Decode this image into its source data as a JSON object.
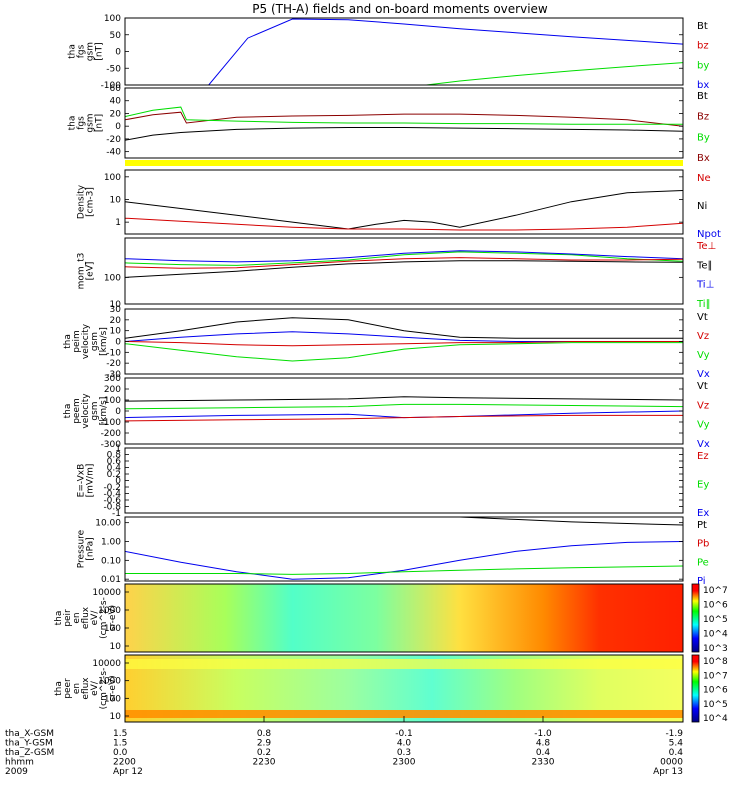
{
  "title": "P5 (TH-A) fields and on-board moments overview",
  "colors": {
    "black": "#000000",
    "red": "#d40000",
    "green": "#00dd00",
    "blue": "#0000ee",
    "yellow": "#ffff00",
    "darkred": "#8b0000"
  },
  "chart_data": [
    {
      "type": "line",
      "ylabel": [
        "tha",
        "fgs",
        "gsm",
        "[nT]"
      ],
      "ylim": [
        -100,
        100
      ],
      "ticks": [
        100,
        50,
        0,
        -50,
        -100
      ],
      "legend": [
        {
          "label": "Bt",
          "color": "black"
        },
        {
          "label": "bz",
          "color": "red"
        },
        {
          "label": "by",
          "color": "green"
        },
        {
          "label": "bx",
          "color": "blue"
        }
      ],
      "series": [
        {
          "name": "bx",
          "color": "blue",
          "x": [
            0.15,
            0.22,
            0.3,
            0.4,
            0.5,
            0.6,
            0.7,
            0.8,
            0.9,
            1.0
          ],
          "y": [
            -100,
            40,
            97,
            95,
            82,
            68,
            56,
            44,
            33,
            22
          ]
        },
        {
          "name": "by",
          "color": "green",
          "x": [
            0.54,
            0.6,
            0.7,
            0.8,
            0.9,
            1.0
          ],
          "y": [
            -100,
            -88,
            -72,
            -58,
            -45,
            -33
          ]
        }
      ]
    },
    {
      "type": "line",
      "ylabel": [
        "tha",
        "fgs",
        "gsm",
        "[nT]"
      ],
      "ylim": [
        -50,
        60
      ],
      "ticks": [
        60,
        40,
        20,
        0,
        -20,
        -40
      ],
      "legend": [
        {
          "label": "Bt",
          "color": "black"
        },
        {
          "label": "Bz",
          "color": "darkred"
        },
        {
          "label": "By",
          "color": "green"
        },
        {
          "label": "Bx",
          "color": "darkred"
        }
      ],
      "series": [
        {
          "name": "Bz",
          "color": "darkred",
          "x": [
            0,
            0.05,
            0.1,
            0.11,
            0.2,
            0.3,
            0.4,
            0.5,
            0.6,
            0.7,
            0.8,
            0.9,
            1.0
          ],
          "y": [
            10,
            18,
            22,
            5,
            14,
            16,
            17,
            19,
            19,
            17,
            14,
            10,
            0
          ]
        },
        {
          "name": "By",
          "color": "green",
          "x": [
            0,
            0.05,
            0.1,
            0.11,
            0.2,
            0.3,
            0.4,
            0.5,
            0.6,
            0.7,
            0.8,
            0.9,
            1.0
          ],
          "y": [
            15,
            25,
            30,
            10,
            8,
            6,
            5,
            5,
            4,
            4,
            3,
            3,
            3
          ]
        },
        {
          "name": "Bt",
          "color": "black",
          "x": [
            0,
            0.05,
            0.1,
            0.2,
            0.3,
            0.4,
            0.5,
            0.6,
            0.7,
            0.8,
            0.9,
            1.0
          ],
          "y": [
            -22,
            -14,
            -10,
            -5,
            -3,
            -2,
            -2,
            -3,
            -4,
            -5,
            -6,
            -8
          ]
        }
      ]
    },
    {
      "type": "line",
      "ylabel": [
        "Density",
        "[cm-3]"
      ],
      "ylog": true,
      "ylim": [
        0.3,
        200
      ],
      "ticks": [
        100,
        10,
        1
      ],
      "legend": [
        {
          "label": "Ne",
          "color": "red"
        },
        {
          "label": "Ni",
          "color": "black"
        },
        {
          "label": "Npot",
          "color": "blue"
        }
      ],
      "series": [
        {
          "name": "Ni",
          "color": "black",
          "x": [
            0,
            0.1,
            0.2,
            0.3,
            0.4,
            0.45,
            0.5,
            0.55,
            0.6,
            0.7,
            0.8,
            0.9,
            1.0
          ],
          "y": [
            8,
            4,
            2,
            1,
            0.5,
            0.8,
            1.2,
            1,
            0.6,
            2,
            8,
            20,
            25
          ]
        },
        {
          "name": "Ne",
          "color": "red",
          "x": [
            0,
            0.1,
            0.2,
            0.3,
            0.4,
            0.5,
            0.6,
            0.7,
            0.8,
            0.9,
            1.0
          ],
          "y": [
            1.5,
            1.1,
            0.8,
            0.6,
            0.5,
            0.5,
            0.45,
            0.45,
            0.5,
            0.6,
            0.9
          ]
        }
      ]
    },
    {
      "type": "line",
      "ylabel": [
        "mom_t3",
        "[eV]"
      ],
      "ylog": true,
      "ylim": [
        10,
        3000
      ],
      "ticks": [
        100,
        10
      ],
      "legend": [
        {
          "label": "Te⊥",
          "color": "red"
        },
        {
          "label": "Te∥",
          "color": "black"
        },
        {
          "label": "Ti⊥",
          "color": "blue"
        },
        {
          "label": "Ti∥",
          "color": "green"
        }
      ],
      "series": [
        {
          "name": "Ti∥",
          "color": "green",
          "x": [
            0,
            0.1,
            0.2,
            0.3,
            0.4,
            0.5,
            0.6,
            0.7,
            0.8,
            0.9,
            1.0
          ],
          "y": [
            350,
            300,
            280,
            350,
            450,
            700,
            900,
            800,
            700,
            500,
            400
          ]
        },
        {
          "name": "Ti⊥",
          "color": "blue",
          "x": [
            0,
            0.1,
            0.2,
            0.3,
            0.4,
            0.5,
            0.6,
            0.7,
            0.8,
            0.9,
            1.0
          ],
          "y": [
            500,
            420,
            380,
            420,
            550,
            800,
            1000,
            900,
            750,
            600,
            500
          ]
        },
        {
          "name": "Te⊥",
          "color": "red",
          "x": [
            0,
            0.1,
            0.2,
            0.3,
            0.4,
            0.5,
            0.6,
            0.7,
            0.8,
            0.9,
            1.0
          ],
          "y": [
            250,
            220,
            230,
            300,
            400,
            500,
            550,
            500,
            450,
            450,
            480
          ]
        },
        {
          "name": "Te∥",
          "color": "black",
          "x": [
            0,
            0.1,
            0.2,
            0.3,
            0.4,
            0.5,
            0.6,
            0.7,
            0.8,
            0.9,
            1.0
          ],
          "y": [
            100,
            130,
            170,
            240,
            320,
            380,
            420,
            420,
            400,
            380,
            370
          ]
        }
      ]
    },
    {
      "type": "line",
      "ylabel": [
        "tha",
        "peim",
        "velocity",
        "gsm",
        "[km/s]"
      ],
      "ylim": [
        -30,
        30
      ],
      "ticks": [
        30,
        20,
        10,
        0,
        -10,
        -20,
        -30
      ],
      "legend": [
        {
          "label": "Vt",
          "color": "black"
        },
        {
          "label": "Vz",
          "color": "red"
        },
        {
          "label": "Vy",
          "color": "green"
        },
        {
          "label": "Vx",
          "color": "blue"
        }
      ],
      "series": [
        {
          "name": "Vt",
          "color": "black",
          "x": [
            0,
            0.1,
            0.2,
            0.3,
            0.4,
            0.5,
            0.6,
            0.7,
            0.8,
            0.9,
            1.0
          ],
          "y": [
            3,
            10,
            18,
            22,
            20,
            10,
            4,
            3,
            3,
            3,
            3
          ]
        },
        {
          "name": "Vx",
          "color": "blue",
          "x": [
            0,
            0.1,
            0.2,
            0.3,
            0.4,
            0.5,
            0.6,
            0.7,
            0.8,
            0.9,
            1.0
          ],
          "y": [
            0,
            4,
            7,
            9,
            7,
            4,
            1,
            0,
            0,
            0,
            0
          ]
        },
        {
          "name": "Vz",
          "color": "red",
          "x": [
            0,
            0.1,
            0.2,
            0.3,
            0.4,
            0.5,
            0.6,
            0.7,
            0.8,
            0.9,
            1.0
          ],
          "y": [
            0,
            -1,
            -3,
            -4,
            -3,
            -2,
            -1,
            -1,
            0,
            0,
            0
          ]
        },
        {
          "name": "Vy",
          "color": "green",
          "x": [
            0,
            0.1,
            0.2,
            0.3,
            0.4,
            0.5,
            0.6,
            0.7,
            0.8,
            0.9,
            1.0
          ],
          "y": [
            -2,
            -8,
            -14,
            -18,
            -15,
            -7,
            -3,
            -2,
            -1,
            -1,
            -1
          ]
        }
      ]
    },
    {
      "type": "line",
      "ylabel": [
        "tha",
        "peem",
        "velocity",
        "gsm",
        "[km/s]"
      ],
      "ylim": [
        -300,
        300
      ],
      "ticks": [
        300,
        200,
        100,
        0,
        -100,
        -200,
        -300
      ],
      "legend": [
        {
          "label": "Vt",
          "color": "black"
        },
        {
          "label": "Vz",
          "color": "red"
        },
        {
          "label": "Vy",
          "color": "green"
        },
        {
          "label": "Vx",
          "color": "blue"
        }
      ],
      "series": [
        {
          "name": "Vt",
          "color": "black",
          "x": [
            0,
            0.2,
            0.4,
            0.5,
            0.6,
            0.8,
            1.0
          ],
          "y": [
            90,
            100,
            110,
            130,
            120,
            110,
            100
          ]
        },
        {
          "name": "Vy",
          "color": "green",
          "x": [
            0,
            0.2,
            0.4,
            0.5,
            0.6,
            0.8,
            1.0
          ],
          "y": [
            20,
            30,
            40,
            60,
            60,
            50,
            40
          ]
        },
        {
          "name": "Vx",
          "color": "blue",
          "x": [
            0,
            0.2,
            0.4,
            0.5,
            0.6,
            0.8,
            1.0
          ],
          "y": [
            -60,
            -40,
            -30,
            -60,
            -50,
            -20,
            0
          ]
        },
        {
          "name": "Vz",
          "color": "red",
          "x": [
            0,
            0.2,
            0.4,
            0.5,
            0.6,
            0.8,
            1.0
          ],
          "y": [
            -90,
            -80,
            -70,
            -60,
            -50,
            -40,
            -40
          ]
        }
      ]
    },
    {
      "type": "line",
      "ylabel": [
        "E=-VxB",
        "[mV/m]"
      ],
      "ylim": [
        -1,
        1
      ],
      "ticks": [
        1.0,
        0.8,
        0.6,
        0.4,
        0.2,
        0.0,
        -0.2,
        -0.4,
        -0.6,
        -0.8,
        -1.0
      ],
      "legend": [
        {
          "label": "Ez",
          "color": "red"
        },
        {
          "label": "Ey",
          "color": "green"
        },
        {
          "label": "Ex",
          "color": "blue"
        }
      ],
      "series": []
    },
    {
      "type": "line",
      "ylabel": [
        "Pressure",
        "[nPa]"
      ],
      "ylog": true,
      "ylim": [
        0.008,
        20
      ],
      "ticks": [
        "10.00",
        "1.00",
        "0.10",
        "0.01"
      ],
      "tickvals": [
        10,
        1,
        0.1,
        0.01
      ],
      "legend": [
        {
          "label": "Pt",
          "color": "black"
        },
        {
          "label": "Pb",
          "color": "red"
        },
        {
          "label": "Pe",
          "color": "green"
        },
        {
          "label": "Pi",
          "color": "blue"
        }
      ],
      "series": [
        {
          "name": "Pt",
          "color": "black",
          "x": [
            0.6,
            0.7,
            0.8,
            0.9,
            1.0
          ],
          "y": [
            20,
            15,
            11,
            9,
            7.5
          ]
        },
        {
          "name": "Pi",
          "color": "blue",
          "x": [
            0,
            0.1,
            0.2,
            0.3,
            0.4,
            0.5,
            0.6,
            0.7,
            0.8,
            0.9,
            1.0
          ],
          "y": [
            0.3,
            0.08,
            0.025,
            0.01,
            0.012,
            0.03,
            0.1,
            0.3,
            0.6,
            0.9,
            1.0
          ]
        },
        {
          "name": "Pe",
          "color": "green",
          "x": [
            0,
            0.1,
            0.2,
            0.3,
            0.4,
            0.5,
            0.6,
            0.7,
            0.8,
            0.9,
            1.0
          ],
          "y": [
            0.02,
            0.02,
            0.02,
            0.018,
            0.02,
            0.025,
            0.03,
            0.035,
            0.04,
            0.045,
            0.05
          ]
        }
      ]
    },
    {
      "type": "heatmap",
      "ylabel": [
        "tha",
        "peir",
        "en",
        "eflux",
        "eV/",
        "(cm^2-s-",
        "sr-eV)"
      ],
      "yticks": [
        "10000",
        "1000",
        "100",
        "10"
      ],
      "colorbar": [
        "10^7",
        "10^6",
        "10^5",
        "10^4",
        "10^3"
      ]
    },
    {
      "type": "heatmap",
      "ylabel": [
        "tha",
        "peer",
        "en",
        "eflux",
        "eV/",
        "(cm^2-s-",
        "sr-eV)"
      ],
      "yticks": [
        "10000",
        "1000",
        "100",
        "10"
      ],
      "colorbar": [
        "10^8",
        "10^7",
        "10^6",
        "10^5",
        "10^4"
      ]
    }
  ],
  "xaxis": {
    "rows": [
      {
        "label": "tha_X-GSM",
        "values": [
          "1.5",
          "0.8",
          "-0.1",
          "-1.0",
          "-1.9"
        ]
      },
      {
        "label": "tha_Y-GSM",
        "values": [
          "1.5",
          "2.9",
          "4.0",
          "4.8",
          "5.4"
        ]
      },
      {
        "label": "tha_Z-GSM",
        "values": [
          "0.0",
          "0.2",
          "0.3",
          "0.4",
          "0.4"
        ]
      },
      {
        "label": "hhmm",
        "values": [
          "2200",
          "2230",
          "2300",
          "2330",
          "0000"
        ]
      },
      {
        "label": "2009",
        "values": [
          "Apr 12",
          "",
          "",
          "",
          "Apr 13"
        ]
      }
    ]
  }
}
